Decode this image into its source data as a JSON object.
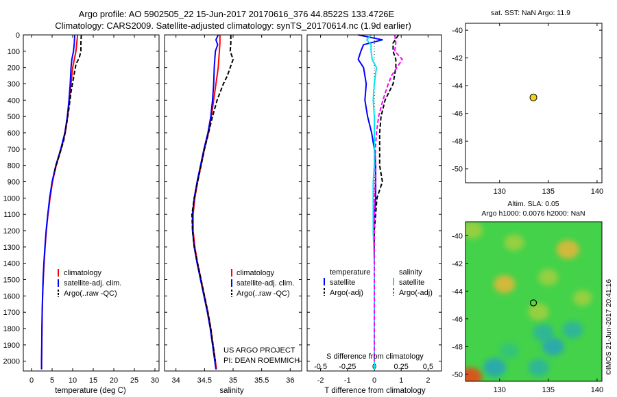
{
  "header": {
    "line1": "Argo profile: AO 5902505_22 15-Jun-2017 20170616_376 44.8522S 133.4726E",
    "line2": "Climatology: CARS2009. Satellite-adjusted climatology: synTS_20170614.nc (1.9d earlier)"
  },
  "depth_ticks": [
    "0",
    "100",
    "200",
    "300",
    "400",
    "500",
    "600",
    "700",
    "800",
    "900",
    "1000",
    "1100",
    "1200",
    "1300",
    "1400",
    "1500",
    "1600",
    "1700",
    "1800",
    "1900",
    "2000"
  ],
  "colors": {
    "climatology": "#ff0000",
    "satellite": "#0000ff",
    "argo": "#000000",
    "sal_satellite": "#00e5ee",
    "sal_argo": "#ff00ff",
    "map_bg": "#44d24a"
  },
  "legend_ts": {
    "climatology": "climatology",
    "satellite": "satellite-adj. clim.",
    "argo": "Argo(..raw -QC)"
  },
  "legend_diff": {
    "temp_title": "temperature",
    "sal_title": "salinity",
    "satellite": "satellite",
    "argo": "Argo(-adj)"
  },
  "project": {
    "line1": "US ARGO PROJECT",
    "line2": "PI: DEAN ROEMMICH"
  },
  "sst_panel": {
    "title": "sat. SST: NaN Argo: 11.9"
  },
  "sla_panel": {
    "title1": "Altim. SLA: 0.05",
    "title2": "Argo h1000: 0.0076 h2000: NaN"
  },
  "imos_stamp": "©IMOS 21-Jun-2017 20:41:16",
  "chart_data": [
    {
      "type": "line",
      "name": "temperature-profile",
      "xlabel": "temperature (deg C)",
      "ylabel": "",
      "xlim": [
        -2,
        31
      ],
      "ylim": [
        2060,
        0
      ],
      "x_ticks": [
        0,
        5,
        10,
        15,
        20,
        25,
        30
      ],
      "series": [
        {
          "name": "climatology",
          "color": "#ff0000",
          "dash": "",
          "depth": [
            0,
            50,
            100,
            150,
            200,
            300,
            400,
            500,
            600,
            700,
            800,
            900,
            1000,
            1100,
            1200,
            1300,
            1400,
            1500,
            1600,
            1700,
            1800,
            1900,
            2000,
            2050
          ],
          "values": [
            11.2,
            11.0,
            10.8,
            10.4,
            10.0,
            9.6,
            9.2,
            8.8,
            8.2,
            7.2,
            6.0,
            5.1,
            4.5,
            4.0,
            3.6,
            3.3,
            3.05,
            2.85,
            2.7,
            2.6,
            2.55,
            2.5,
            2.45,
            2.45
          ]
        },
        {
          "name": "satellite-adj. clim.",
          "color": "#0000ff",
          "dash": "",
          "depth": [
            0,
            50,
            100,
            150,
            200,
            300,
            400,
            500,
            600,
            700,
            800,
            900,
            1000,
            1100,
            1200,
            1300,
            1400,
            1500,
            1600,
            1700,
            1800,
            1900,
            2000,
            2050
          ],
          "values": [
            10.5,
            10.4,
            10.2,
            9.8,
            9.6,
            9.4,
            9.1,
            8.7,
            8.1,
            7.1,
            5.9,
            5.0,
            4.4,
            3.95,
            3.55,
            3.25,
            3.0,
            2.8,
            2.68,
            2.58,
            2.52,
            2.48,
            2.44,
            2.44
          ]
        },
        {
          "name": "Argo(..raw -QC)",
          "color": "#000000",
          "dash": "6,3",
          "depth": [
            0,
            50,
            100,
            140,
            180,
            250,
            350,
            450,
            550,
            650,
            750,
            850
          ],
          "values": [
            12.1,
            12.0,
            12.0,
            11.6,
            10.8,
            10.3,
            9.6,
            9.1,
            8.5,
            7.8,
            6.6,
            5.4
          ]
        }
      ]
    },
    {
      "type": "line",
      "name": "salinity-profile",
      "xlabel": "salinity",
      "ylabel": "",
      "xlim": [
        33.8,
        36.2
      ],
      "ylim": [
        2060,
        0
      ],
      "x_ticks": [
        34,
        34.5,
        35,
        35.5,
        36
      ],
      "series": [
        {
          "name": "climatology",
          "color": "#ff0000",
          "dash": "",
          "depth": [
            0,
            50,
            100,
            200,
            300,
            400,
            500,
            600,
            700,
            800,
            900,
            1000,
            1100,
            1200,
            1300,
            1400,
            1500,
            1600,
            1700,
            1800,
            1900,
            2000,
            2050
          ],
          "values": [
            34.77,
            34.77,
            34.76,
            34.74,
            34.7,
            34.66,
            34.62,
            34.57,
            34.5,
            34.44,
            34.38,
            34.33,
            34.3,
            34.3,
            34.33,
            34.38,
            34.44,
            34.5,
            34.56,
            34.61,
            34.65,
            34.69,
            34.71
          ]
        },
        {
          "name": "satellite-adj. clim.",
          "color": "#0000ff",
          "dash": "",
          "depth": [
            0,
            30,
            60,
            100,
            150,
            200,
            300,
            400,
            500,
            600,
            700,
            800,
            900,
            1000,
            1100,
            1200,
            1300,
            1400,
            1500,
            1600,
            1700,
            1800,
            1900,
            2000,
            2050
          ],
          "values": [
            34.74,
            34.7,
            34.73,
            34.69,
            34.68,
            34.67,
            34.66,
            34.64,
            34.61,
            34.56,
            34.49,
            34.43,
            34.37,
            34.32,
            34.29,
            34.29,
            34.32,
            34.37,
            34.43,
            34.49,
            34.55,
            34.6,
            34.64,
            34.68,
            34.7
          ]
        },
        {
          "name": "Argo(..raw -QC)",
          "color": "#000000",
          "dash": "6,3",
          "depth": [
            0,
            50,
            100,
            150,
            200,
            250,
            300,
            400,
            500,
            600,
            700,
            800,
            900,
            1000,
            1100,
            1200,
            1300,
            1400,
            1500,
            1600,
            1700,
            1800,
            1900,
            2000
          ],
          "values": [
            34.96,
            34.96,
            34.95,
            35.0,
            34.95,
            34.9,
            34.83,
            34.72,
            34.64,
            34.57,
            34.5,
            34.44,
            34.38,
            34.32,
            34.28,
            34.29,
            34.32,
            34.38,
            34.44,
            34.5,
            34.56,
            34.61,
            34.65,
            34.69
          ]
        }
      ]
    },
    {
      "type": "line",
      "name": "difference-profile",
      "xlabel": "T difference from climatology",
      "xlabel_top": "S difference from climatology",
      "ylabel": "",
      "xlim": [
        -2.5,
        2.5
      ],
      "ylim": [
        2060,
        0
      ],
      "x_ticks": [
        -2,
        -1,
        0,
        1,
        2
      ],
      "x_ticks_top": [
        -0.5,
        -0.25,
        0,
        0.25,
        0.5
      ],
      "series": [
        {
          "name": "temperature satellite",
          "color": "#0000ff",
          "dash": "",
          "depth": [
            0,
            30,
            60,
            100,
            150,
            200,
            300,
            400,
            500,
            600,
            700,
            800,
            900,
            1000,
            1100,
            1200,
            1400,
            1600,
            1800,
            2000,
            2050
          ],
          "values": [
            -0.6,
            0.3,
            -0.4,
            -0.5,
            -0.6,
            -0.4,
            -0.3,
            -0.35,
            -0.25,
            -0.1,
            0.0,
            0.05,
            0.05,
            0.05,
            0.0,
            0.0,
            0.0,
            0.0,
            0.0,
            0.0,
            0.0
          ]
        },
        {
          "name": "temperature Argo(-adj)",
          "color": "#000000",
          "dash": "6,3",
          "depth": [
            0,
            50,
            100,
            150,
            200,
            300,
            400,
            500,
            600,
            700,
            800,
            900,
            1000,
            1100,
            1200,
            1400,
            1600,
            1800,
            2000
          ],
          "values": [
            0.9,
            0.7,
            0.7,
            0.8,
            0.8,
            0.7,
            0.4,
            0.25,
            0.2,
            0.2,
            0.2,
            0.3,
            0.1,
            0.05,
            0.0,
            0.0,
            0.0,
            0.0,
            0.0
          ]
        },
        {
          "name": "salinity satellite",
          "color": "#00e5ee",
          "dash": "",
          "depth": [
            0,
            30,
            60,
            100,
            150,
            200,
            300,
            400,
            500,
            600,
            700,
            800,
            900,
            1000,
            1100,
            1200,
            1300,
            1400,
            1600,
            1800,
            2000,
            2050
          ],
          "values": [
            -0.03,
            -0.07,
            -0.03,
            -0.03,
            -0.02,
            0.02,
            0.0,
            -0.01,
            0.0,
            0.0,
            0.0,
            0.0,
            -0.01,
            -0.01,
            -0.01,
            -0.01,
            -0.005,
            0.0,
            0.0,
            0.0,
            0.0,
            0.0
          ]
        },
        {
          "name": "salinity Argo(-adj)",
          "color": "#ff00ff",
          "dash": "6,3",
          "depth": [
            0,
            50,
            100,
            150,
            200,
            250,
            300,
            400,
            500,
            600,
            700,
            800,
            900,
            1000,
            1100,
            1200,
            1400,
            1600,
            1800,
            2000
          ],
          "values": [
            0.19,
            0.2,
            0.19,
            0.26,
            0.21,
            0.16,
            0.13,
            0.08,
            0.04,
            0.02,
            0.01,
            0.01,
            0.01,
            0.0,
            0.0,
            0.0,
            0.0,
            0.0,
            0.0,
            0.0
          ]
        }
      ]
    },
    {
      "type": "scatter",
      "name": "sst-location-map",
      "xlim": [
        126.5,
        140.5
      ],
      "ylim": [
        -51,
        -39.5
      ],
      "x_ticks": [
        130,
        135,
        140
      ],
      "y_ticks": [
        -40,
        -42,
        -44,
        -46,
        -48,
        -50
      ],
      "points": [
        {
          "x": 133.47,
          "y": -44.85,
          "color": "#eed21c"
        }
      ]
    },
    {
      "type": "heatmap",
      "name": "sla-map",
      "xlim": [
        126.5,
        140.5
      ],
      "ylim": [
        -50.5,
        -39
      ],
      "x_ticks": [
        130,
        135,
        140
      ],
      "y_ticks": [
        -40,
        -42,
        -44,
        -46,
        -48,
        -50
      ],
      "points": [
        {
          "x": 133.47,
          "y": -44.85
        }
      ],
      "features": [
        {
          "x": 127.2,
          "y": -39.6,
          "value": 0.3
        },
        {
          "x": 131.5,
          "y": -40.5,
          "value": 0.25
        },
        {
          "x": 137.0,
          "y": -41.0,
          "value": 0.4
        },
        {
          "x": 130.5,
          "y": -43.5,
          "value": 0.35
        },
        {
          "x": 135.0,
          "y": -43.0,
          "value": 0.25
        },
        {
          "x": 138.5,
          "y": -44.5,
          "value": 0.2
        },
        {
          "x": 134.0,
          "y": -45.5,
          "value": 0.3
        },
        {
          "x": 134.5,
          "y": -47.0,
          "value": -0.3
        },
        {
          "x": 137.5,
          "y": -46.8,
          "value": -0.3
        },
        {
          "x": 135.5,
          "y": -48.0,
          "value": -0.35
        },
        {
          "x": 131.0,
          "y": -48.3,
          "value": -0.2
        },
        {
          "x": 134.0,
          "y": -49.5,
          "value": -0.3
        },
        {
          "x": 129.5,
          "y": -49.5,
          "value": -0.4
        },
        {
          "x": 127.0,
          "y": -50.2,
          "value": 0.8
        }
      ]
    }
  ]
}
